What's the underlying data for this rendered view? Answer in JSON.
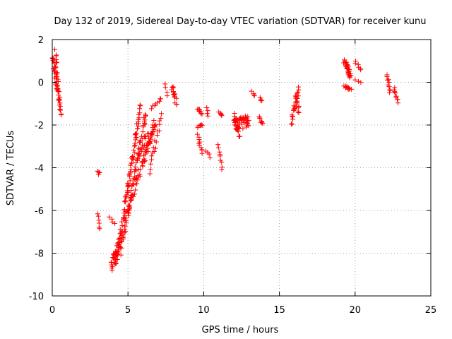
{
  "chart_data": {
    "type": "scatter",
    "title": "Day 132 of 2019, Sidereal Day-to-day VTEC variation (SDTVAR) for receiver kunu",
    "xlabel": "GPS time / hours",
    "ylabel": "SDTVAR / TECUs",
    "xlim": [
      0,
      25
    ],
    "ylim": [
      -10,
      2
    ],
    "x_ticks": [
      0,
      5,
      10,
      15,
      20,
      25
    ],
    "y_ticks": [
      -10,
      -8,
      -6,
      -4,
      -2,
      0,
      2
    ],
    "x_tick_labels": [
      "0",
      "5",
      "10",
      "15",
      "20",
      "25"
    ],
    "y_tick_labels": [
      "-10",
      "-8",
      "-6",
      "-4",
      "-2",
      "0",
      "2"
    ],
    "grid": true,
    "marker": "+",
    "color": "#ff0000",
    "segments": [
      {
        "from": [
          0.0,
          1.3
        ],
        "to": [
          0.6,
          -1.5
        ],
        "n": 40,
        "spread": 0.35
      },
      {
        "from": [
          0.2,
          1.45
        ],
        "to": [
          0.4,
          -0.5
        ],
        "n": 18,
        "spread": 0.2
      },
      {
        "from": [
          3.0,
          -4.15
        ],
        "to": [
          3.1,
          -4.3
        ],
        "n": 4,
        "spread": 0.05
      },
      {
        "from": [
          3.0,
          -6.2
        ],
        "to": [
          3.1,
          -6.9
        ],
        "n": 6,
        "spread": 0.15
      },
      {
        "from": [
          3.8,
          -6.3
        ],
        "to": [
          4.1,
          -6.6
        ],
        "n": 4,
        "spread": 0.1
      },
      {
        "from": [
          3.9,
          -8.8
        ],
        "to": [
          4.4,
          -7.5
        ],
        "n": 26,
        "spread": 0.6
      },
      {
        "from": [
          4.2,
          -8.6
        ],
        "to": [
          5.8,
          -1.2
        ],
        "n": 90,
        "spread": 0.45
      },
      {
        "from": [
          4.5,
          -7.9
        ],
        "to": [
          6.2,
          -1.4
        ],
        "n": 70,
        "spread": 0.45
      },
      {
        "from": [
          5.0,
          -6.0
        ],
        "to": [
          6.8,
          -1.8
        ],
        "n": 45,
        "spread": 0.45
      },
      {
        "from": [
          5.6,
          -3.6
        ],
        "to": [
          6.3,
          -2.4
        ],
        "n": 18,
        "spread": 0.3
      },
      {
        "from": [
          6.0,
          -3.8
        ],
        "to": [
          6.8,
          -2.0
        ],
        "n": 22,
        "spread": 0.3
      },
      {
        "from": [
          6.4,
          -4.2
        ],
        "to": [
          7.2,
          -1.6
        ],
        "n": 18,
        "spread": 0.3
      },
      {
        "from": [
          6.6,
          -1.2
        ],
        "to": [
          7.2,
          -0.8
        ],
        "n": 8,
        "spread": 0.2
      },
      {
        "from": [
          7.5,
          -0.1
        ],
        "to": [
          7.6,
          -0.6
        ],
        "n": 4,
        "spread": 0.1
      },
      {
        "from": [
          7.9,
          -0.2
        ],
        "to": [
          8.2,
          -1.0
        ],
        "n": 16,
        "spread": 0.2
      },
      {
        "from": [
          9.6,
          -1.2
        ],
        "to": [
          9.9,
          -1.5
        ],
        "n": 9,
        "spread": 0.15
      },
      {
        "from": [
          9.6,
          -2.1
        ],
        "to": [
          9.9,
          -2.0
        ],
        "n": 7,
        "spread": 0.1
      },
      {
        "from": [
          9.6,
          -2.5
        ],
        "to": [
          9.9,
          -3.3
        ],
        "n": 10,
        "spread": 0.15
      },
      {
        "from": [
          10.2,
          -1.2
        ],
        "to": [
          10.3,
          -1.6
        ],
        "n": 4,
        "spread": 0.1
      },
      {
        "from": [
          10.2,
          -3.2
        ],
        "to": [
          10.4,
          -3.5
        ],
        "n": 4,
        "spread": 0.1
      },
      {
        "from": [
          11.0,
          -1.4
        ],
        "to": [
          11.2,
          -1.6
        ],
        "n": 5,
        "spread": 0.1
      },
      {
        "from": [
          11.0,
          -3.0
        ],
        "to": [
          11.2,
          -4.0
        ],
        "n": 9,
        "spread": 0.2
      },
      {
        "from": [
          12.0,
          -2.0
        ],
        "to": [
          13.0,
          -1.8
        ],
        "n": 50,
        "spread": 0.55
      },
      {
        "from": [
          12.0,
          -1.5
        ],
        "to": [
          12.4,
          -2.6
        ],
        "n": 16,
        "spread": 0.3
      },
      {
        "from": [
          13.2,
          -0.45
        ],
        "to": [
          13.4,
          -0.6
        ],
        "n": 4,
        "spread": 0.08
      },
      {
        "from": [
          13.7,
          -0.7
        ],
        "to": [
          13.9,
          -0.9
        ],
        "n": 4,
        "spread": 0.08
      },
      {
        "from": [
          13.7,
          -1.6
        ],
        "to": [
          13.9,
          -2.0
        ],
        "n": 8,
        "spread": 0.2
      },
      {
        "from": [
          15.8,
          -1.9
        ],
        "to": [
          16.3,
          -0.3
        ],
        "n": 24,
        "spread": 0.35
      },
      {
        "from": [
          16.1,
          -0.6
        ],
        "to": [
          16.3,
          -1.4
        ],
        "n": 10,
        "spread": 0.25
      },
      {
        "from": [
          19.3,
          0.95
        ],
        "to": [
          19.7,
          0.3
        ],
        "n": 30,
        "spread": 0.3
      },
      {
        "from": [
          19.3,
          -0.2
        ],
        "to": [
          19.7,
          -0.35
        ],
        "n": 12,
        "spread": 0.1
      },
      {
        "from": [
          20.0,
          1.05
        ],
        "to": [
          20.4,
          0.5
        ],
        "n": 6,
        "spread": 0.2
      },
      {
        "from": [
          20.0,
          0.1
        ],
        "to": [
          20.4,
          0.0
        ],
        "n": 3,
        "spread": 0.05
      },
      {
        "from": [
          22.1,
          0.35
        ],
        "to": [
          22.3,
          -0.5
        ],
        "n": 10,
        "spread": 0.15
      },
      {
        "from": [
          22.6,
          -0.3
        ],
        "to": [
          22.8,
          -0.9
        ],
        "n": 10,
        "spread": 0.15
      }
    ]
  }
}
